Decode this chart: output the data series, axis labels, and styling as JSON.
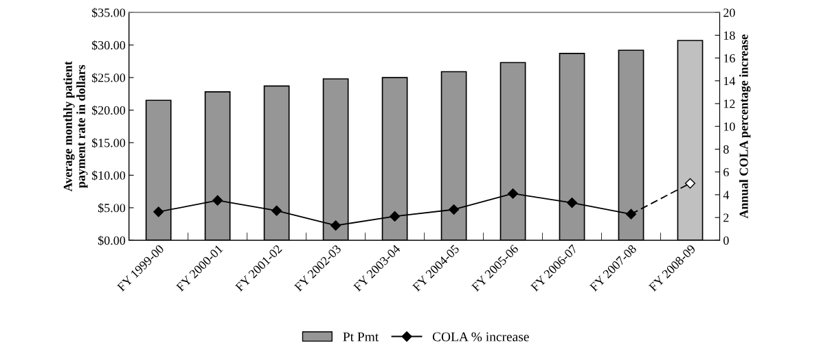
{
  "chart_data": {
    "type": "bar",
    "ylabel": "Average monthly patient\npayment rate in dollars",
    "y2label": "Annual COLA percentage increase",
    "categories": [
      "FY 1999-00",
      "FY 2000-01",
      "FY 2001-02",
      "FY 2002-03",
      "FY 2003-04",
      "FY 2004-05",
      "FY 2005-06",
      "FY 2006-07",
      "FY 2007-08",
      "FY 2008-09"
    ],
    "series": [
      {
        "name": "Pt Pmt",
        "color": "#969696",
        "colors": [
          "#969696",
          "#969696",
          "#969696",
          "#969696",
          "#969696",
          "#969696",
          "#969696",
          "#969696",
          "#969696",
          "#c0c0c0"
        ],
        "values": [
          21.5,
          22.8,
          23.7,
          24.8,
          25.0,
          25.9,
          27.3,
          28.7,
          29.2,
          30.7
        ]
      },
      {
        "name": "COLA % increase",
        "type": "line",
        "axis": "y2",
        "color": "#000000",
        "marker": "diamond",
        "line_style": "solid",
        "values": [
          2.5,
          3.5,
          2.6,
          1.3,
          2.1,
          2.7,
          4.1,
          3.3,
          2.3,
          null
        ]
      },
      {
        "type": "line",
        "axis": "y2",
        "color": "#000000",
        "marker": "diamond",
        "line_style": "dashed",
        "values": [
          null,
          null,
          null,
          null,
          null,
          null,
          null,
          null,
          2.3,
          5.0
        ]
      }
    ],
    "ylim": [
      0,
      35
    ],
    "yticks": [
      {
        "value": 0,
        "label": "$0.00"
      },
      {
        "value": 5,
        "label": "$5.00"
      },
      {
        "value": 10,
        "label": "$10.00"
      },
      {
        "value": 15,
        "label": "$15.00"
      },
      {
        "value": 20,
        "label": "$20.00"
      },
      {
        "value": 25,
        "label": "$25.00"
      },
      {
        "value": 30,
        "label": "$30.00"
      },
      {
        "value": 35,
        "label": "$35.00"
      }
    ],
    "y2lim": [
      0,
      20
    ],
    "y2ticks": [
      0,
      2,
      4,
      6,
      8,
      10,
      12,
      14,
      16,
      18,
      20
    ],
    "grid": false,
    "legend": "bottom"
  }
}
